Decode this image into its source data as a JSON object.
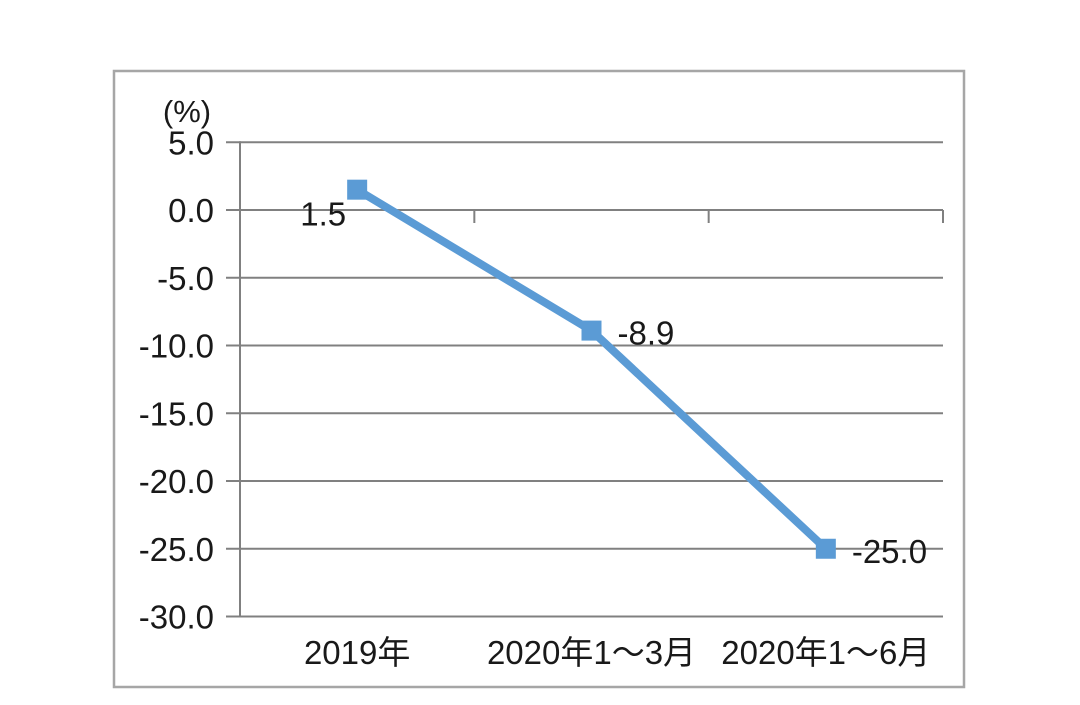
{
  "chart_data": {
    "type": "line",
    "title": "",
    "unit_label": "(%)",
    "categories": [
      "2019年",
      "2020年1～3月",
      "2020年1～6月"
    ],
    "series": [
      {
        "name": "",
        "values": [
          1.5,
          -8.9,
          -25.0
        ]
      }
    ],
    "data_labels": [
      "1.5",
      "-8.9",
      "-25.0"
    ],
    "y_axis": {
      "min": -30,
      "max": 5,
      "step": 5,
      "tick_labels": [
        "5.0",
        "0.0",
        "-5.0",
        "-10.0",
        "-15.0",
        "-20.0",
        "-25.0",
        "-30.0"
      ]
    },
    "x_axis_position": "zero-line",
    "grid": true,
    "legend": "none",
    "marker": "square",
    "colors": {
      "line": "#5B9BD5",
      "marker": "#5B9BD5",
      "grid": "#808080",
      "axis": "#808080",
      "border": "#a6a6a6",
      "text": "#191919",
      "background": "#ffffff"
    }
  }
}
